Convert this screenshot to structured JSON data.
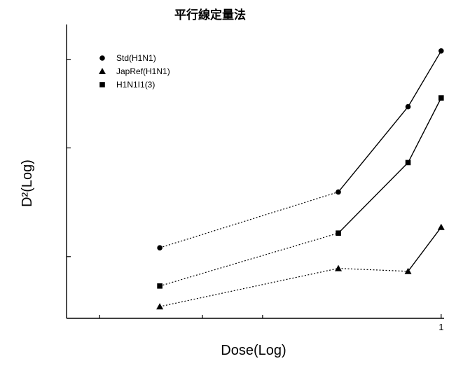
{
  "chart_data": {
    "type": "line",
    "title": "平行線定量法",
    "xlabel": "Dose(Log)",
    "ylabel": "D²(Log)",
    "xscale": "log",
    "xlim": [
      0.08,
      1.02
    ],
    "ylim": [
      0,
      1
    ],
    "x_tick_labels": [
      {
        "x": 1,
        "label": "1"
      }
    ],
    "y_tick_labels": [],
    "grid": false,
    "legend_position": "top-left",
    "series": [
      {
        "name": "Std(H1N1)",
        "marker": "circle",
        "x": [
          0.15,
          0.5,
          0.8,
          1.0
        ],
        "y": [
          0.24,
          0.43,
          0.72,
          0.91
        ],
        "segment_styles": [
          "dotted",
          "solid",
          "solid"
        ]
      },
      {
        "name": "JapRef(H1N1)",
        "marker": "triangle",
        "x": [
          0.15,
          0.5,
          0.8,
          1.0
        ],
        "y": [
          0.04,
          0.17,
          0.16,
          0.31
        ],
        "segment_styles": [
          "dotted",
          "dotted",
          "solid"
        ]
      },
      {
        "name": "H1N1I1(3)",
        "marker": "square",
        "x": [
          0.15,
          0.5,
          0.8,
          1.0
        ],
        "y": [
          0.11,
          0.29,
          0.53,
          0.75
        ],
        "segment_styles": [
          "dotted",
          "solid",
          "solid"
        ]
      }
    ]
  }
}
